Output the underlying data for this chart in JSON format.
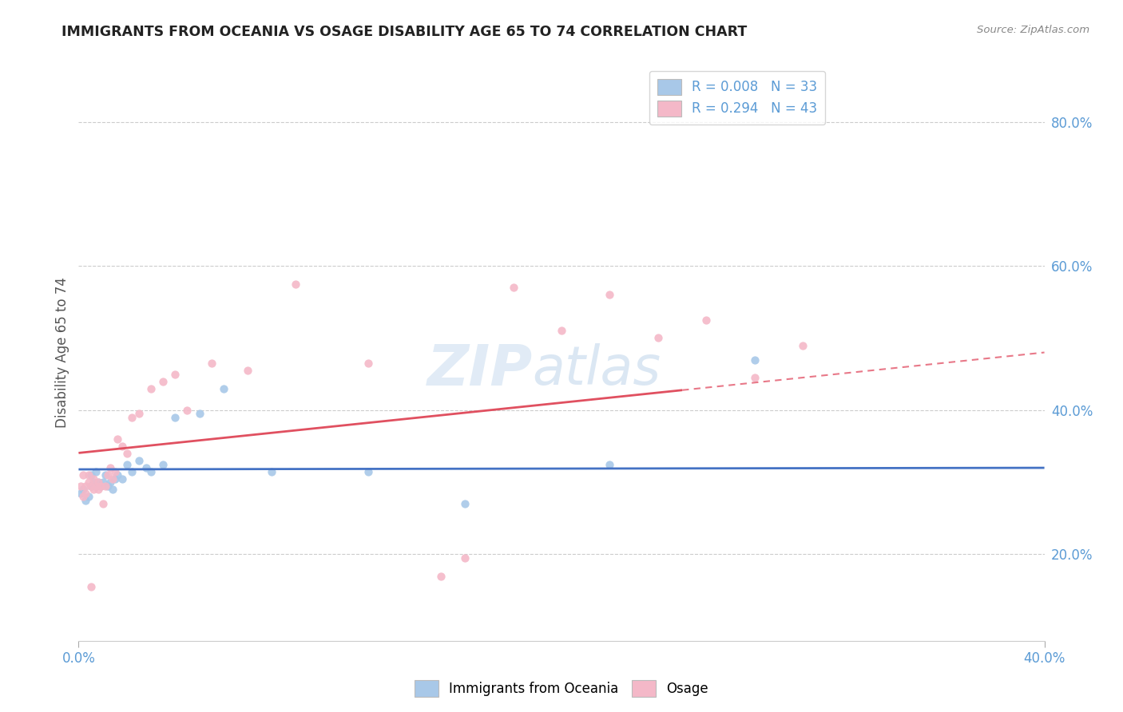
{
  "title": "IMMIGRANTS FROM OCEANIA VS OSAGE DISABILITY AGE 65 TO 74 CORRELATION CHART",
  "source": "Source: ZipAtlas.com",
  "ylabel": "Disability Age 65 to 74",
  "xmin": 0.0,
  "xmax": 0.4,
  "ymin": 0.08,
  "ymax": 0.88,
  "x_tick_labels": [
    "0.0%",
    "40.0%"
  ],
  "x_tick_vals": [
    0.0,
    0.4
  ],
  "y_tick_labels": [
    "20.0%",
    "40.0%",
    "60.0%",
    "80.0%"
  ],
  "y_tick_values": [
    0.2,
    0.4,
    0.6,
    0.8
  ],
  "legend1_label": "R = 0.008   N = 33",
  "legend2_label": "R = 0.294   N = 43",
  "color_blue": "#a8c8e8",
  "color_pink": "#f4b8c8",
  "color_blue_line": "#4472c4",
  "color_pink_line": "#e05060",
  "color_pink_line_dash": "#e87888",
  "watermark": "ZIPatlas",
  "blue_R": 0.008,
  "pink_R": 0.294,
  "blue_scatter_x": [
    0.001,
    0.002,
    0.003,
    0.004,
    0.005,
    0.005,
    0.006,
    0.007,
    0.007,
    0.008,
    0.009,
    0.01,
    0.011,
    0.012,
    0.013,
    0.014,
    0.015,
    0.016,
    0.018,
    0.02,
    0.022,
    0.025,
    0.028,
    0.03,
    0.035,
    0.04,
    0.05,
    0.06,
    0.08,
    0.12,
    0.16,
    0.22,
    0.28
  ],
  "blue_scatter_y": [
    0.285,
    0.29,
    0.275,
    0.28,
    0.295,
    0.31,
    0.3,
    0.295,
    0.315,
    0.3,
    0.295,
    0.3,
    0.31,
    0.295,
    0.3,
    0.29,
    0.305,
    0.31,
    0.305,
    0.325,
    0.315,
    0.33,
    0.32,
    0.315,
    0.325,
    0.39,
    0.395,
    0.43,
    0.315,
    0.315,
    0.27,
    0.325,
    0.47
  ],
  "pink_scatter_x": [
    0.001,
    0.002,
    0.002,
    0.003,
    0.003,
    0.004,
    0.004,
    0.005,
    0.005,
    0.006,
    0.006,
    0.007,
    0.008,
    0.008,
    0.009,
    0.01,
    0.011,
    0.012,
    0.013,
    0.014,
    0.015,
    0.016,
    0.018,
    0.02,
    0.022,
    0.025,
    0.03,
    0.035,
    0.04,
    0.045,
    0.055,
    0.07,
    0.09,
    0.12,
    0.15,
    0.16,
    0.18,
    0.2,
    0.22,
    0.24,
    0.26,
    0.28,
    0.3
  ],
  "pink_scatter_y": [
    0.295,
    0.31,
    0.28,
    0.295,
    0.285,
    0.3,
    0.31,
    0.295,
    0.155,
    0.305,
    0.29,
    0.295,
    0.3,
    0.29,
    0.295,
    0.27,
    0.295,
    0.31,
    0.32,
    0.305,
    0.315,
    0.36,
    0.35,
    0.34,
    0.39,
    0.395,
    0.43,
    0.44,
    0.45,
    0.4,
    0.465,
    0.455,
    0.575,
    0.465,
    0.17,
    0.195,
    0.57,
    0.51,
    0.56,
    0.5,
    0.525,
    0.445,
    0.49
  ]
}
